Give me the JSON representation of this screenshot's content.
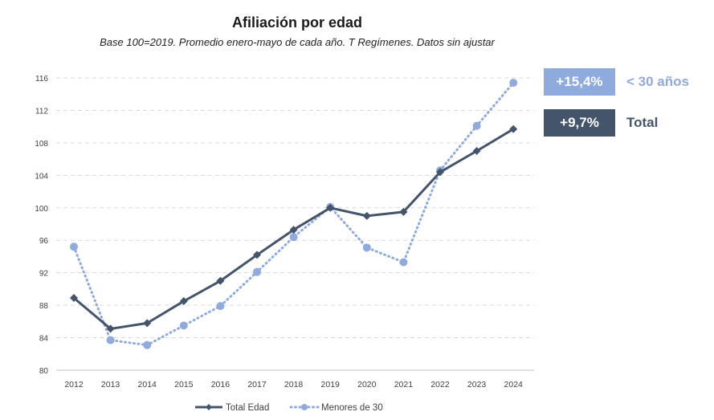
{
  "chart_data": {
    "type": "line",
    "title": "Afiliación por edad",
    "subtitle": "Base 100=2019. Promedio enero-mayo de cada año. T Regímenes. Datos sin ajustar",
    "xlabel": "",
    "ylabel": "",
    "ylim": [
      80,
      116
    ],
    "yticks": [
      80,
      84,
      88,
      92,
      96,
      100,
      104,
      108,
      112,
      116
    ],
    "categories": [
      "2012",
      "2013",
      "2014",
      "2015",
      "2016",
      "2017",
      "2018",
      "2019",
      "2020",
      "2021",
      "2022",
      "2023",
      "2024"
    ],
    "series": [
      {
        "name": "Total Edad",
        "color": "#44546a",
        "marker": "diamond",
        "style": "solid",
        "values": [
          88.9,
          85.1,
          85.8,
          88.5,
          91.0,
          94.2,
          97.3,
          100.0,
          99.0,
          99.5,
          104.4,
          107.0,
          109.7
        ]
      },
      {
        "name": "Menores de 30",
        "color": "#8faadc",
        "marker": "circle",
        "style": "dotted",
        "values": [
          95.2,
          83.7,
          83.1,
          85.5,
          87.9,
          92.1,
          96.4,
          100.1,
          95.1,
          93.3,
          104.6,
          110.1,
          115.4
        ]
      }
    ],
    "legend_position": "bottom",
    "grid": true
  },
  "badges": [
    {
      "value": "+15,4%",
      "label": "< 30 años",
      "bg": "#8faadc",
      "label_color": "#8faadc"
    },
    {
      "value": "+9,7%",
      "label": "Total",
      "bg": "#44546a",
      "label_color": "#44546a"
    }
  ],
  "colors": {
    "grid": "#d9d9d9",
    "axis": "#bfbfbf",
    "tick_text": "#404040"
  }
}
